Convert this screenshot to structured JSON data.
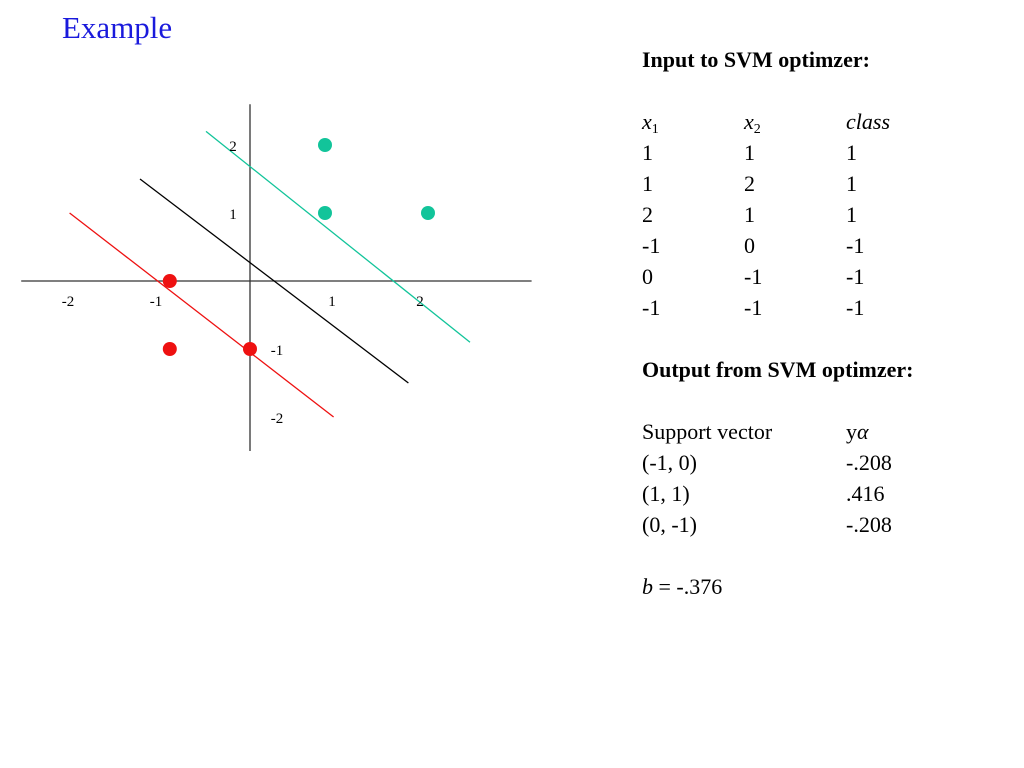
{
  "title": "Example",
  "chart_data": {
    "type": "scatter",
    "xlim": [
      -2.6,
      3.2
    ],
    "ylim": [
      -2.5,
      2.6
    ],
    "x_ticks": [
      -2,
      -1,
      1,
      2
    ],
    "y_ticks": [
      2,
      1,
      -1,
      -2
    ],
    "tick_labels_x": [
      "-2",
      "-1",
      "1",
      "2"
    ],
    "tick_labels_y": [
      "2",
      "1",
      "-1",
      "-2"
    ],
    "series": [
      {
        "points": [
          [
            1,
            2
          ],
          [
            1,
            1
          ],
          [
            2,
            1
          ]
        ],
        "color": "#12c49a"
      },
      {
        "points": [
          [
            -1,
            0
          ],
          [
            -1,
            -1
          ],
          [
            0,
            -1
          ]
        ],
        "color": "#ee1111"
      }
    ],
    "lines": [
      {
        "from": [
          -0.5,
          2.2
        ],
        "to": [
          2.5,
          -0.9
        ],
        "color": "#12c49a"
      },
      {
        "from": [
          -1.25,
          1.5
        ],
        "to": [
          1.8,
          -1.5
        ],
        "color": "#000000"
      },
      {
        "from": [
          -2.05,
          1.0
        ],
        "to": [
          0.95,
          -2.0
        ],
        "color": "#ee1111"
      }
    ],
    "grid": false,
    "legend": "none"
  },
  "panel": {
    "input_heading": "Input to SVM optimzer:",
    "col_x_letter": "x",
    "col_x1_sub": "1",
    "col_x2_sub": "2",
    "col_class": "class",
    "rows": [
      [
        "1",
        "1",
        "1"
      ],
      [
        "1",
        "2",
        "1"
      ],
      [
        "2",
        "1",
        "1"
      ],
      [
        "-1",
        "0",
        "-1"
      ],
      [
        "0",
        "-1",
        "-1"
      ],
      [
        "-1",
        "-1",
        "-1"
      ]
    ],
    "output_heading": "Output from SVM optimzer:",
    "sv_header_label": "Support vector",
    "sv_header_y": "y",
    "sv_header_alpha": "α",
    "support_vectors": [
      [
        "(-1, 0)",
        "-.208"
      ],
      [
        "(1, 1)",
        ".416"
      ],
      [
        "(0, -1)",
        "-.208"
      ]
    ],
    "b_symbol": "b",
    "b_value": " = -.376"
  }
}
